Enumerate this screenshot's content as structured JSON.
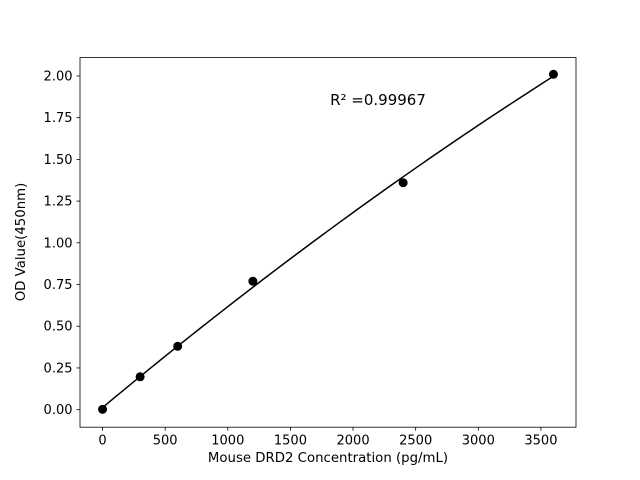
{
  "chart_data": {
    "type": "scatter",
    "title": "",
    "xlabel": "Mouse DRD2 Concentration (pg/mL)",
    "ylabel": "OD Value(450nm)",
    "x": [
      0,
      300,
      600,
      1200,
      2400,
      3600
    ],
    "y": [
      0.002,
      0.197,
      0.38,
      0.77,
      1.36,
      2.01
    ],
    "annotation": "R² =0.99967",
    "xlim": [
      -180,
      3780
    ],
    "ylim": [
      -0.105,
      2.11
    ],
    "xticks": [
      "0",
      "500",
      "1000",
      "1500",
      "2000",
      "2500",
      "3000",
      "3500"
    ],
    "yticks": [
      "0.00",
      "0.25",
      "0.50",
      "0.75",
      "1.00",
      "1.25",
      "1.50",
      "1.75",
      "2.00"
    ],
    "fit": {
      "type": "polynomial",
      "degree": 2
    },
    "grid": false,
    "legend": null,
    "marker_color": "#000000",
    "line_color": "#000000",
    "background_color": "#ffffff"
  }
}
